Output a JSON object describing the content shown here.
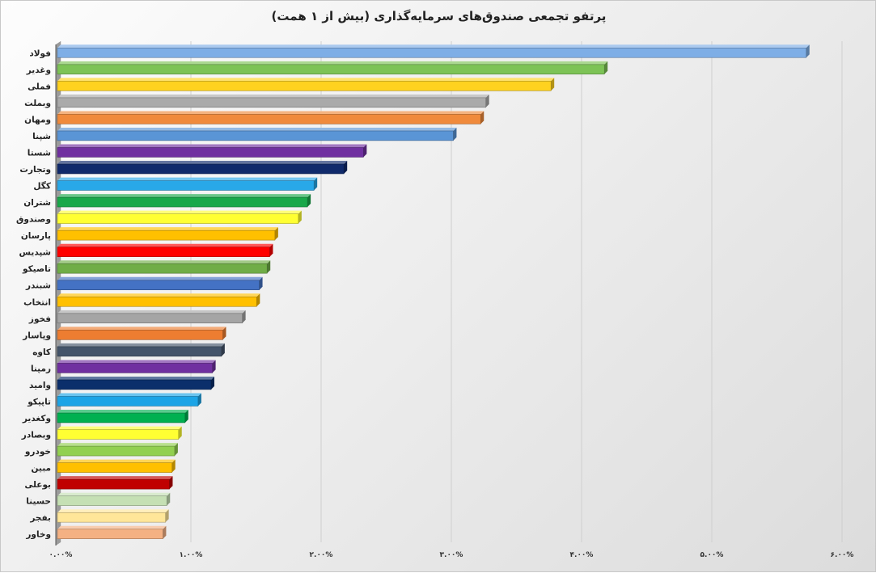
{
  "chart_data": {
    "type": "bar",
    "orientation": "horizontal",
    "title": "پرتفو تجمعی صندوق‌های سرمایه‌گذاری (بیش از ۱ همت)",
    "xlabel": "",
    "ylabel": "",
    "xlim": [
      0,
      6
    ],
    "grid": true,
    "legend": "none",
    "x_tick_labels": [
      "۰.۰۰%",
      "۱.۰۰%",
      "۲.۰۰%",
      "۳.۰۰%",
      "۴.۰۰%",
      "۵.۰۰%",
      "۶.۰۰%"
    ],
    "categories": [
      "فولاد",
      "وغدیر",
      "فملی",
      "وبملت",
      "ومهان",
      "شپنا",
      "شستا",
      "وتجارت",
      "کگل",
      "شتران",
      "وصندوق",
      "پارسان",
      "شپدیس",
      "تاصیکو",
      "شبندر",
      "انتخاب",
      "فخوز",
      "وپاسار",
      "کاوه",
      "رمپنا",
      "وامید",
      "تاپیکو",
      "وکغدیر",
      "وبصادر",
      "خودرو",
      "مبین",
      "بوعلی",
      "حسینا",
      "بفجر",
      "وخاور"
    ],
    "values": [
      5.75,
      4.2,
      3.79,
      3.29,
      3.25,
      3.04,
      2.35,
      2.2,
      1.97,
      1.92,
      1.85,
      1.67,
      1.63,
      1.61,
      1.55,
      1.53,
      1.42,
      1.27,
      1.26,
      1.19,
      1.18,
      1.08,
      0.98,
      0.93,
      0.9,
      0.88,
      0.86,
      0.84,
      0.83,
      0.81
    ],
    "colors": [
      "#7eaee6",
      "#7dc356",
      "#ffd21f",
      "#aaaaaa",
      "#f08a3c",
      "#5a95d6",
      "#7030a0",
      "#102a6b",
      "#29a8e8",
      "#19a84a",
      "#ffff33",
      "#ffc000",
      "#ff0000",
      "#70ad47",
      "#4472c4",
      "#ffc000",
      "#a5a5a5",
      "#ed7d31",
      "#44546a",
      "#7030a0",
      "#0b2f6b",
      "#1ca4e6",
      "#00b050",
      "#ffff33",
      "#92d050",
      "#ffc000",
      "#c00000",
      "#c5e0b4",
      "#ffe699",
      "#f4b183"
    ]
  }
}
